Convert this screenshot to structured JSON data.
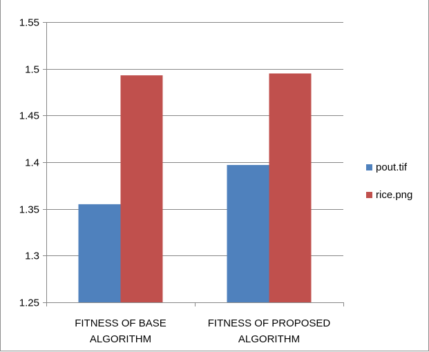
{
  "chart_data": {
    "type": "bar",
    "categories": [
      "FITNESS OF BASE ALGORITHM",
      "FITNESS OF PROPOSED ALGORITHM"
    ],
    "category_lines": [
      [
        "FITNESS OF BASE",
        "ALGORITHM"
      ],
      [
        "FITNESS OF PROPOSED",
        "ALGORITHM"
      ]
    ],
    "series": [
      {
        "name": "pout.tif",
        "values": [
          1.355,
          1.397
        ],
        "color": "#4f81bd"
      },
      {
        "name": "rice.png",
        "values": [
          1.493,
          1.495
        ],
        "color": "#c0504d"
      }
    ],
    "title": "",
    "xlabel": "",
    "ylabel": "",
    "ylim": [
      1.25,
      1.55
    ],
    "yticks": [
      1.25,
      1.3,
      1.35,
      1.4,
      1.45,
      1.5,
      1.55
    ],
    "ytick_labels": [
      "1.25",
      "1.3",
      "1.35",
      "1.4",
      "1.45",
      "1.5",
      "1.55"
    ],
    "grid": true,
    "legend_position": "right"
  }
}
